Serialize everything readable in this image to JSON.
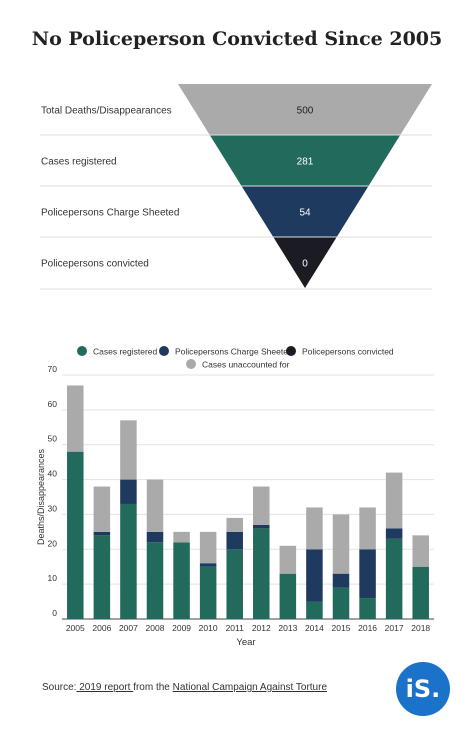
{
  "title": "No Policeperson Convicted Since 2005",
  "colors": {
    "cases_registered": "#226a5c",
    "charge_sheeted": "#1e3a5f",
    "convicted": "#1b1b24",
    "unaccounted": "#aaaaaa",
    "funnel_top": "#aaaaaa"
  },
  "chart_data": [
    {
      "type": "funnel",
      "stages": [
        {
          "label": "Total Deaths/Disappearances",
          "value": 500
        },
        {
          "label": "Cases registered",
          "value": 281
        },
        {
          "label": "Policepersons Charge Sheeted",
          "value": 54
        },
        {
          "label": "Policepersons convicted",
          "value": 0
        }
      ]
    },
    {
      "type": "bar",
      "stacked": true,
      "categories": [
        "2005",
        "2006",
        "2007",
        "2008",
        "2009",
        "2010",
        "2011",
        "2012",
        "2013",
        "2014",
        "2015",
        "2016",
        "2017",
        "2018"
      ],
      "series": [
        {
          "name": "Cases registered",
          "values": [
            48,
            24,
            33,
            22,
            22,
            15,
            20,
            26,
            13,
            5,
            9,
            6,
            23,
            15
          ]
        },
        {
          "name": "Policepersons Charge Sheeted",
          "values": [
            0,
            1,
            7,
            3,
            0,
            1,
            5,
            1,
            0,
            15,
            4,
            14,
            3,
            0
          ]
        },
        {
          "name": "Policepersons convicted",
          "values": [
            0,
            0,
            0,
            0,
            0,
            0,
            0,
            0,
            0,
            0,
            0,
            0,
            0,
            0
          ]
        },
        {
          "name": "Cases unaccounted for",
          "values": [
            19,
            13,
            17,
            15,
            3,
            9,
            4,
            11,
            8,
            12,
            17,
            12,
            16,
            9
          ]
        }
      ],
      "xlabel": "Year",
      "ylabel": "Deaths/Disappearances",
      "ylim": [
        0,
        70
      ],
      "yticks": [
        0,
        10,
        20,
        30,
        40,
        50,
        60,
        70
      ],
      "legend_position": "top"
    }
  ],
  "source": {
    "prefix": "Source:",
    "link1": " 2019 report ",
    "middle": " from the ",
    "link2": "National Campaign Against Torture"
  },
  "logo": {
    "text": "iS."
  }
}
